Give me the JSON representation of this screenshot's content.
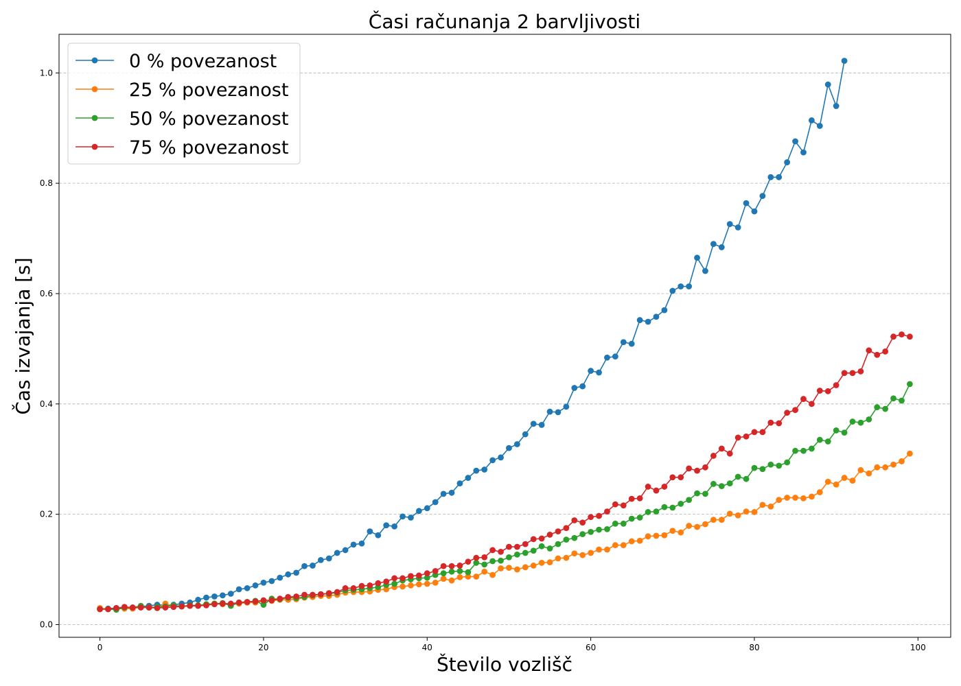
{
  "chart_data": {
    "type": "line",
    "title": "Časi računanja 2 barvljivosti",
    "xlabel": "Število vozlišč",
    "ylabel": "Čas izvajanja [s]",
    "xlim": [
      -5,
      104
    ],
    "ylim": [
      -0.023,
      1.07
    ],
    "xticks": [
      0,
      20,
      40,
      60,
      80,
      100
    ],
    "xtick_labels": [
      "0",
      "20",
      "40",
      "60",
      "80",
      "100"
    ],
    "yticks": [
      0.0,
      0.2,
      0.4,
      0.6,
      0.8,
      1.0
    ],
    "ytick_labels": [
      "0.0",
      "0.2",
      "0.4",
      "0.6",
      "0.8",
      "1.0"
    ],
    "grid": "y-dashed",
    "legend_position": "top-left",
    "series": [
      {
        "name": "0 % povezanost",
        "color": "#1f77b4",
        "x_start": 0,
        "values": [
          0.029,
          0.029,
          0.03,
          0.031,
          0.03,
          0.033,
          0.034,
          0.036,
          0.035,
          0.036,
          0.038,
          0.04,
          0.045,
          0.049,
          0.051,
          0.053,
          0.056,
          0.064,
          0.066,
          0.071,
          0.076,
          0.079,
          0.085,
          0.091,
          0.094,
          0.106,
          0.107,
          0.117,
          0.12,
          0.13,
          0.135,
          0.145,
          0.147,
          0.169,
          0.162,
          0.18,
          0.178,
          0.196,
          0.194,
          0.206,
          0.211,
          0.222,
          0.237,
          0.239,
          0.256,
          0.266,
          0.279,
          0.281,
          0.298,
          0.303,
          0.32,
          0.327,
          0.345,
          0.364,
          0.362,
          0.386,
          0.385,
          0.395,
          0.429,
          0.432,
          0.46,
          0.457,
          0.484,
          0.486,
          0.512,
          0.509,
          0.552,
          0.549,
          0.558,
          0.57,
          0.605,
          0.613,
          0.613,
          0.665,
          0.641,
          0.69,
          0.684,
          0.726,
          0.72,
          0.764,
          0.749,
          0.777,
          0.811,
          0.811,
          0.838,
          0.876,
          0.856,
          0.914,
          0.904,
          0.979,
          0.94,
          1.022
        ]
      },
      {
        "name": "25 % povezanost",
        "color": "#ff7f0e",
        "x_start": 0,
        "values": [
          0.03,
          0.028,
          0.029,
          0.029,
          0.029,
          0.032,
          0.031,
          0.031,
          0.038,
          0.033,
          0.033,
          0.034,
          0.034,
          0.036,
          0.038,
          0.037,
          0.037,
          0.038,
          0.04,
          0.04,
          0.043,
          0.043,
          0.045,
          0.045,
          0.046,
          0.049,
          0.05,
          0.052,
          0.052,
          0.054,
          0.058,
          0.059,
          0.059,
          0.06,
          0.063,
          0.064,
          0.068,
          0.069,
          0.071,
          0.073,
          0.074,
          0.076,
          0.083,
          0.08,
          0.086,
          0.087,
          0.087,
          0.096,
          0.09,
          0.102,
          0.103,
          0.1,
          0.104,
          0.107,
          0.112,
          0.113,
          0.12,
          0.121,
          0.129,
          0.126,
          0.13,
          0.136,
          0.136,
          0.144,
          0.144,
          0.151,
          0.152,
          0.16,
          0.161,
          0.162,
          0.17,
          0.167,
          0.179,
          0.177,
          0.182,
          0.19,
          0.19,
          0.201,
          0.198,
          0.205,
          0.204,
          0.217,
          0.214,
          0.226,
          0.23,
          0.23,
          0.229,
          0.232,
          0.24,
          0.259,
          0.254,
          0.266,
          0.261,
          0.28,
          0.274,
          0.285,
          0.285,
          0.29,
          0.296,
          0.31
        ]
      },
      {
        "name": "50 % povezanost",
        "color": "#2ca02c",
        "x_start": 0,
        "values": [
          0.028,
          0.028,
          0.027,
          0.031,
          0.031,
          0.034,
          0.031,
          0.032,
          0.033,
          0.035,
          0.033,
          0.035,
          0.035,
          0.037,
          0.038,
          0.039,
          0.034,
          0.04,
          0.041,
          0.043,
          0.036,
          0.047,
          0.046,
          0.049,
          0.048,
          0.05,
          0.053,
          0.055,
          0.056,
          0.058,
          0.062,
          0.063,
          0.064,
          0.066,
          0.068,
          0.072,
          0.074,
          0.08,
          0.082,
          0.084,
          0.085,
          0.09,
          0.093,
          0.096,
          0.097,
          0.095,
          0.112,
          0.109,
          0.115,
          0.116,
          0.122,
          0.127,
          0.13,
          0.134,
          0.142,
          0.138,
          0.146,
          0.154,
          0.157,
          0.164,
          0.168,
          0.172,
          0.173,
          0.183,
          0.183,
          0.192,
          0.194,
          0.204,
          0.205,
          0.213,
          0.212,
          0.219,
          0.226,
          0.238,
          0.237,
          0.255,
          0.251,
          0.256,
          0.268,
          0.264,
          0.284,
          0.282,
          0.29,
          0.288,
          0.294,
          0.315,
          0.315,
          0.319,
          0.335,
          0.332,
          0.352,
          0.348,
          0.368,
          0.366,
          0.372,
          0.394,
          0.391,
          0.41,
          0.406,
          0.436
        ]
      },
      {
        "name": "75 % povezanost",
        "color": "#d62728",
        "x_start": 0,
        "values": [
          0.028,
          0.028,
          0.03,
          0.032,
          0.031,
          0.031,
          0.031,
          0.03,
          0.031,
          0.032,
          0.033,
          0.034,
          0.034,
          0.035,
          0.037,
          0.038,
          0.038,
          0.04,
          0.041,
          0.042,
          0.044,
          0.044,
          0.047,
          0.05,
          0.051,
          0.054,
          0.054,
          0.055,
          0.057,
          0.059,
          0.066,
          0.066,
          0.07,
          0.071,
          0.075,
          0.078,
          0.084,
          0.084,
          0.088,
          0.089,
          0.093,
          0.097,
          0.106,
          0.106,
          0.107,
          0.114,
          0.121,
          0.122,
          0.135,
          0.132,
          0.141,
          0.141,
          0.146,
          0.155,
          0.156,
          0.163,
          0.169,
          0.175,
          0.189,
          0.185,
          0.195,
          0.197,
          0.205,
          0.218,
          0.216,
          0.228,
          0.229,
          0.25,
          0.243,
          0.25,
          0.267,
          0.267,
          0.283,
          0.279,
          0.285,
          0.306,
          0.319,
          0.31,
          0.339,
          0.341,
          0.349,
          0.349,
          0.366,
          0.365,
          0.384,
          0.389,
          0.409,
          0.4,
          0.424,
          0.423,
          0.434,
          0.456,
          0.456,
          0.459,
          0.497,
          0.489,
          0.495,
          0.522,
          0.526,
          0.522
        ]
      }
    ]
  }
}
